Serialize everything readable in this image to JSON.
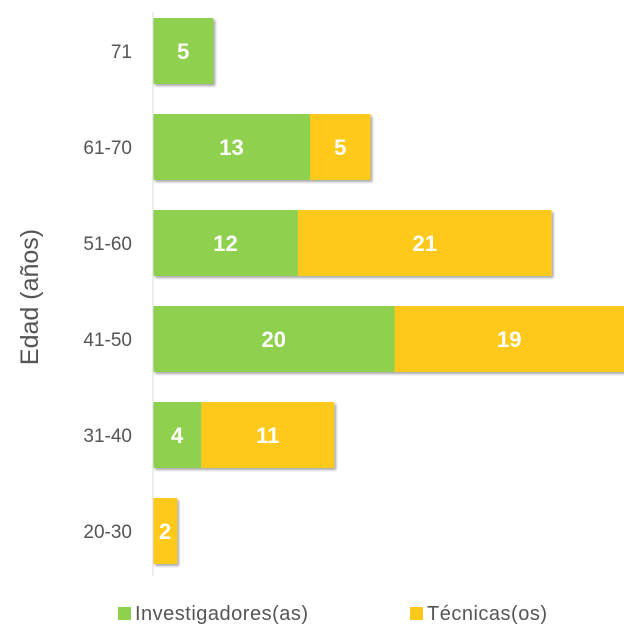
{
  "chart_data": {
    "type": "bar",
    "orientation": "horizontal",
    "stacked": true,
    "ylabel": "Edad (años)",
    "xlabel": "",
    "categories": [
      "71",
      "61-70",
      "51-60",
      "41-50",
      "31-40",
      "20-30"
    ],
    "series": [
      {
        "name": "Investigadores(as)",
        "color": "#8fd14f",
        "values": [
          5,
          13,
          12,
          20,
          4,
          0
        ]
      },
      {
        "name": "Técnicas(os)",
        "color": "#ffc91b",
        "values": [
          0,
          5,
          21,
          19,
          11,
          2
        ]
      }
    ],
    "legend_position": "bottom",
    "grid": false,
    "xlim": [
      0,
      39
    ]
  }
}
